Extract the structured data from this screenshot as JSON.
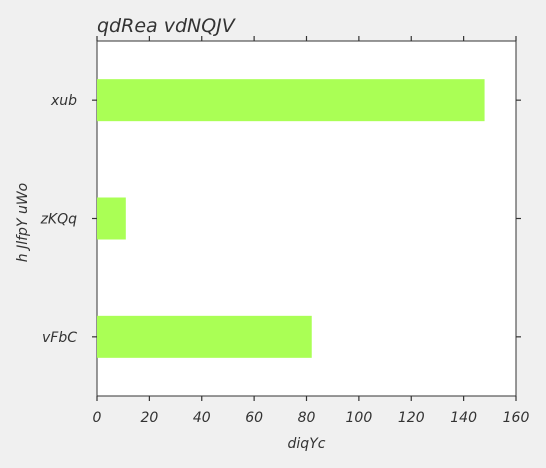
{
  "chart_data": {
    "type": "bar",
    "orientation": "horizontal",
    "title": "qdRea vdNQJV",
    "xlabel": "diqYc",
    "ylabel": "h JlfpY uWo",
    "categories": [
      "xub",
      "zKQq",
      "vFbC"
    ],
    "values": [
      148,
      11,
      82
    ],
    "xlim": [
      0,
      160
    ],
    "xticks": [
      "0",
      "20",
      "40",
      "60",
      "80",
      "100",
      "120",
      "140",
      "160"
    ],
    "grid": false,
    "legend": "none",
    "bar_color": "#aaff55",
    "plot_background": "#ffffff",
    "page_background": "#f0f0f0"
  }
}
